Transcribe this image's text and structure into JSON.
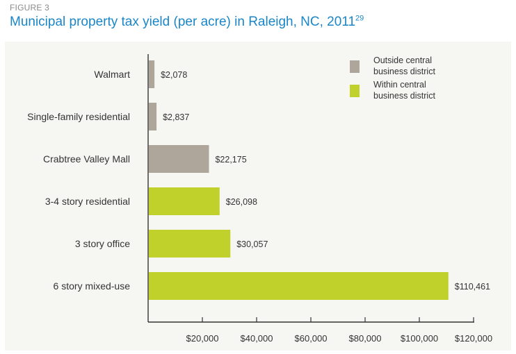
{
  "figure": {
    "label": "FIGURE 3",
    "title": "Municipal property tax yield (per acre) in Raleigh, NC, 2011",
    "footnote": "29"
  },
  "chart_data": {
    "type": "bar",
    "orientation": "horizontal",
    "title": "Municipal property tax yield (per acre) in Raleigh, NC, 2011",
    "xlabel": "",
    "ylabel": "",
    "xlim": [
      0,
      120000
    ],
    "x_ticks": [
      20000,
      40000,
      60000,
      80000,
      100000,
      120000
    ],
    "x_tick_labels": [
      "$20,000",
      "$40,000",
      "$60,000",
      "$80,000",
      "$100,000",
      "$120,000"
    ],
    "categories": [
      "Walmart",
      "Single-family residential",
      "Crabtree Valley Mall",
      "3-4 story residential",
      "3 story office",
      "6 story mixed-use"
    ],
    "values": [
      2078,
      2837,
      22175,
      26098,
      30057,
      110461
    ],
    "value_labels": [
      "$2,078",
      "$2,837",
      "$22,175",
      "$26,098",
      "$30,057",
      "$110,461"
    ],
    "groups": [
      "outside",
      "outside",
      "outside",
      "within",
      "within",
      "within"
    ],
    "grid": false,
    "legend_position": "top-right",
    "legend": [
      {
        "key": "outside",
        "lines": [
          "Outside central",
          "business district"
        ],
        "color": "#aea59b"
      },
      {
        "key": "within",
        "lines": [
          "Within central",
          "business district"
        ],
        "color": "#bfd12a"
      }
    ]
  },
  "colors": {
    "title": "#1a86c8",
    "panel_background": "#f6f6f3",
    "axis": "#333333"
  }
}
